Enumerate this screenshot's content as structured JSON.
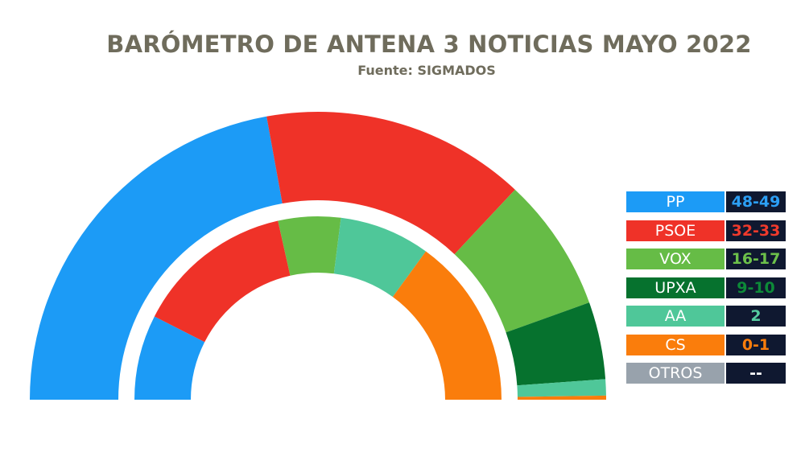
{
  "header": {
    "title": "BARÓMETRO DE ANTENA 3 NOTICIAS MAYO 2022",
    "source": "Fuente: SIGMADOS"
  },
  "chart_data": {
    "type": "pie",
    "subtype": "parliament-hemicycle",
    "title": "BARÓMETRO DE ANTENA 3 NOTICIAS MAYO 2022",
    "subtitle": "Fuente: SIGMADOS",
    "series": [
      {
        "ring": "outer",
        "slices": [
          {
            "party": "PP",
            "value": 48.5
          },
          {
            "party": "PSOE",
            "value": 32.5
          },
          {
            "party": "VOX",
            "value": 16.5
          },
          {
            "party": "UPXA",
            "value": 9.5
          },
          {
            "party": "AA",
            "value": 2
          },
          {
            "party": "CS",
            "value": 0.5
          }
        ]
      },
      {
        "ring": "inner",
        "slices": [
          {
            "party": "PP",
            "value": 15
          },
          {
            "party": "PSOE",
            "value": 28
          },
          {
            "party": "VOX",
            "value": 11
          },
          {
            "party": "AA",
            "value": 16
          },
          {
            "party": "CS",
            "value": 30
          }
        ]
      }
    ],
    "legend": {
      "placement": "right",
      "entries": [
        {
          "party": "PP",
          "seats": "48-49",
          "color": "#1c9bf6",
          "seats_color": "#2c9ff5"
        },
        {
          "party": "PSOE",
          "seats": "32-33",
          "color": "#ef3228",
          "seats_color": "#f03a2c"
        },
        {
          "party": "VOX",
          "seats": "16-17",
          "color": "#66bc46",
          "seats_color": "#6cc04a"
        },
        {
          "party": "UPXA",
          "seats": "9-10",
          "color": "#06722e",
          "seats_color": "#0d8a38"
        },
        {
          "party": "AA",
          "seats": "2",
          "color": "#4fc799",
          "seats_color": "#55cba0"
        },
        {
          "party": "CS",
          "seats": "0-1",
          "color": "#fa7d0c",
          "seats_color": "#fa7d0c"
        },
        {
          "party": "OTROS",
          "seats": "--",
          "color": "#98a2ac",
          "seats_color": "#ffffff"
        }
      ]
    }
  }
}
